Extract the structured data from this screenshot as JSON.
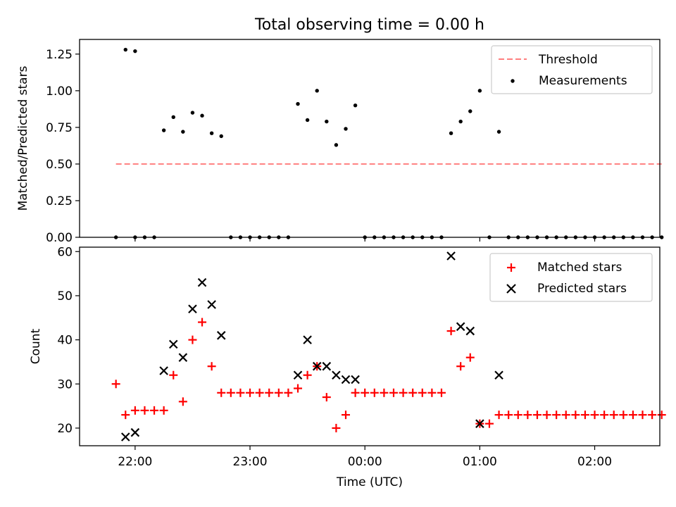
{
  "chart_data": [
    {
      "type": "scatter",
      "title": "Total observing time = 0.00 h",
      "xlabel": "",
      "ylabel": "Matched/Predicted stars",
      "ylim": [
        0,
        1.35
      ],
      "y_ticks": [
        "0.00",
        "0.25",
        "0.50",
        "0.75",
        "1.00",
        "1.25"
      ],
      "x_ticks": [
        "22:00",
        "23:00",
        "00:00",
        "01:00",
        "02:00"
      ],
      "xlim": [
        "21:31",
        "02:34"
      ],
      "legend_position": "upper right",
      "threshold": {
        "name": "Threshold",
        "y": 0.5,
        "x_range": [
          "21:50",
          "02:35"
        ],
        "color": "#ff7f7f",
        "style": "dashed"
      },
      "series": [
        {
          "name": "Measurements",
          "color": "#000000",
          "marker": "dot",
          "points": [
            [
              "21:50",
              0
            ],
            [
              "21:55",
              1.28
            ],
            [
              "22:00",
              1.27
            ],
            [
              "22:00",
              0
            ],
            [
              "22:05",
              0
            ],
            [
              "22:10",
              0
            ],
            [
              "22:15",
              0.73
            ],
            [
              "22:20",
              0.82
            ],
            [
              "22:25",
              0.72
            ],
            [
              "22:30",
              0.85
            ],
            [
              "22:35",
              0.83
            ],
            [
              "22:40",
              0.71
            ],
            [
              "22:45",
              0.69
            ],
            [
              "22:50",
              0
            ],
            [
              "22:55",
              0
            ],
            [
              "23:00",
              0
            ],
            [
              "23:05",
              0
            ],
            [
              "23:10",
              0
            ],
            [
              "23:15",
              0
            ],
            [
              "23:20",
              0
            ],
            [
              "23:25",
              0.91
            ],
            [
              "23:30",
              0.8
            ],
            [
              "23:35",
              1.0
            ],
            [
              "23:40",
              0.79
            ],
            [
              "23:45",
              0.63
            ],
            [
              "23:50",
              0.74
            ],
            [
              "23:55",
              0.9
            ],
            [
              "00:00",
              0
            ],
            [
              "00:05",
              0
            ],
            [
              "00:10",
              0
            ],
            [
              "00:15",
              0
            ],
            [
              "00:20",
              0
            ],
            [
              "00:25",
              0
            ],
            [
              "00:30",
              0
            ],
            [
              "00:35",
              0
            ],
            [
              "00:40",
              0
            ],
            [
              "00:45",
              0.71
            ],
            [
              "00:50",
              0.79
            ],
            [
              "00:55",
              0.86
            ],
            [
              "01:00",
              1.0
            ],
            [
              "01:05",
              0
            ],
            [
              "01:10",
              0.72
            ],
            [
              "01:15",
              0
            ],
            [
              "01:20",
              0
            ],
            [
              "01:25",
              0
            ],
            [
              "01:30",
              0
            ],
            [
              "01:35",
              0
            ],
            [
              "01:40",
              0
            ],
            [
              "01:45",
              0
            ],
            [
              "01:50",
              0
            ],
            [
              "01:55",
              0
            ],
            [
              "02:00",
              0
            ],
            [
              "02:05",
              0
            ],
            [
              "02:10",
              0
            ],
            [
              "02:15",
              0
            ],
            [
              "02:20",
              0
            ],
            [
              "02:25",
              0
            ],
            [
              "02:30",
              0
            ],
            [
              "02:35",
              0
            ]
          ]
        }
      ]
    },
    {
      "type": "scatter",
      "title": "",
      "xlabel": "Time (UTC)",
      "ylabel": "Count",
      "ylim": [
        16,
        61
      ],
      "y_ticks": [
        "20",
        "30",
        "40",
        "50",
        "60"
      ],
      "x_ticks": [
        "22:00",
        "23:00",
        "00:00",
        "01:00",
        "02:00"
      ],
      "xlim": [
        "21:31",
        "02:34"
      ],
      "legend_position": "upper right",
      "series": [
        {
          "name": "Matched stars",
          "color": "#ff0000",
          "marker": "plus",
          "points": [
            [
              "21:50",
              30
            ],
            [
              "21:55",
              23
            ],
            [
              "22:00",
              24
            ],
            [
              "22:05",
              24
            ],
            [
              "22:10",
              24
            ],
            [
              "22:15",
              24
            ],
            [
              "22:20",
              32
            ],
            [
              "22:25",
              26
            ],
            [
              "22:30",
              40
            ],
            [
              "22:35",
              44
            ],
            [
              "22:40",
              34
            ],
            [
              "22:45",
              28
            ],
            [
              "22:50",
              28
            ],
            [
              "22:55",
              28
            ],
            [
              "23:00",
              28
            ],
            [
              "23:05",
              28
            ],
            [
              "23:10",
              28
            ],
            [
              "23:15",
              28
            ],
            [
              "23:20",
              28
            ],
            [
              "23:25",
              29
            ],
            [
              "23:30",
              32
            ],
            [
              "23:35",
              34
            ],
            [
              "23:40",
              27
            ],
            [
              "23:45",
              20
            ],
            [
              "23:50",
              23
            ],
            [
              "23:55",
              28
            ],
            [
              "00:00",
              28
            ],
            [
              "00:05",
              28
            ],
            [
              "00:10",
              28
            ],
            [
              "00:15",
              28
            ],
            [
              "00:20",
              28
            ],
            [
              "00:25",
              28
            ],
            [
              "00:30",
              28
            ],
            [
              "00:35",
              28
            ],
            [
              "00:40",
              28
            ],
            [
              "00:45",
              42
            ],
            [
              "00:50",
              34
            ],
            [
              "00:55",
              36
            ],
            [
              "01:00",
              21
            ],
            [
              "01:05",
              21
            ],
            [
              "01:10",
              23
            ],
            [
              "01:15",
              23
            ],
            [
              "01:20",
              23
            ],
            [
              "01:25",
              23
            ],
            [
              "01:30",
              23
            ],
            [
              "01:35",
              23
            ],
            [
              "01:40",
              23
            ],
            [
              "01:45",
              23
            ],
            [
              "01:50",
              23
            ],
            [
              "01:55",
              23
            ],
            [
              "02:00",
              23
            ],
            [
              "02:05",
              23
            ],
            [
              "02:10",
              23
            ],
            [
              "02:15",
              23
            ],
            [
              "02:20",
              23
            ],
            [
              "02:25",
              23
            ],
            [
              "02:30",
              23
            ],
            [
              "02:35",
              23
            ]
          ]
        },
        {
          "name": "Predicted stars",
          "color": "#000000",
          "marker": "x",
          "points": [
            [
              "21:55",
              18
            ],
            [
              "22:00",
              19
            ],
            [
              "22:15",
              33
            ],
            [
              "22:20",
              39
            ],
            [
              "22:25",
              36
            ],
            [
              "22:30",
              47
            ],
            [
              "22:35",
              53
            ],
            [
              "22:40",
              48
            ],
            [
              "22:45",
              41
            ],
            [
              "23:25",
              32
            ],
            [
              "23:30",
              40
            ],
            [
              "23:35",
              34
            ],
            [
              "23:40",
              34
            ],
            [
              "23:45",
              32
            ],
            [
              "23:50",
              31
            ],
            [
              "23:55",
              31
            ],
            [
              "00:45",
              59
            ],
            [
              "00:50",
              43
            ],
            [
              "00:55",
              42
            ],
            [
              "01:00",
              21
            ],
            [
              "01:10",
              32
            ]
          ]
        }
      ]
    }
  ]
}
